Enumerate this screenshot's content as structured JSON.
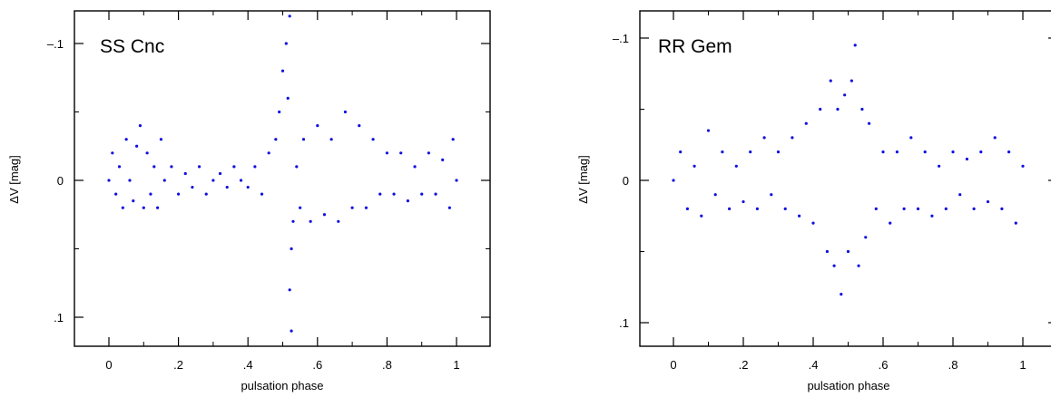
{
  "chart_data": [
    {
      "type": "scatter",
      "title": "SS Cnc",
      "xlabel": "pulsation phase",
      "ylabel": "ΔV [mag]",
      "xlim": [
        -0.1,
        1.1
      ],
      "ylim": [
        0.125,
        -0.125
      ],
      "y_inverted": true,
      "x_ticks": [
        "0",
        ".2",
        ".4",
        ".6",
        ".8",
        "1"
      ],
      "x_tick_values": [
        0,
        0.2,
        0.4,
        0.6,
        0.8,
        1.0
      ],
      "y_ticks": [
        "–.1",
        "0",
        ".1"
      ],
      "y_tick_values": [
        -0.1,
        0,
        0.1
      ],
      "marker_color": "#1010e0",
      "grid": false,
      "series": [
        {
          "values": [
            {
              "x": 0.0,
              "y": 0.0
            },
            {
              "x": 0.01,
              "y": -0.02
            },
            {
              "x": 0.02,
              "y": 0.01
            },
            {
              "x": 0.03,
              "y": -0.01
            },
            {
              "x": 0.04,
              "y": 0.02
            },
            {
              "x": 0.05,
              "y": -0.03
            },
            {
              "x": 0.06,
              "y": 0.0
            },
            {
              "x": 0.07,
              "y": 0.015
            },
            {
              "x": 0.08,
              "y": -0.025
            },
            {
              "x": 0.09,
              "y": -0.04
            },
            {
              "x": 0.1,
              "y": 0.02
            },
            {
              "x": 0.11,
              "y": -0.02
            },
            {
              "x": 0.12,
              "y": 0.01
            },
            {
              "x": 0.13,
              "y": -0.01
            },
            {
              "x": 0.14,
              "y": 0.02
            },
            {
              "x": 0.15,
              "y": -0.03
            },
            {
              "x": 0.16,
              "y": 0.0
            },
            {
              "x": 0.18,
              "y": -0.01
            },
            {
              "x": 0.2,
              "y": 0.01
            },
            {
              "x": 0.22,
              "y": -0.005
            },
            {
              "x": 0.24,
              "y": 0.005
            },
            {
              "x": 0.26,
              "y": -0.01
            },
            {
              "x": 0.28,
              "y": 0.01
            },
            {
              "x": 0.3,
              "y": 0.0
            },
            {
              "x": 0.32,
              "y": -0.005
            },
            {
              "x": 0.34,
              "y": 0.005
            },
            {
              "x": 0.36,
              "y": -0.01
            },
            {
              "x": 0.38,
              "y": 0.0
            },
            {
              "x": 0.4,
              "y": 0.005
            },
            {
              "x": 0.42,
              "y": -0.01
            },
            {
              "x": 0.44,
              "y": 0.01
            },
            {
              "x": 0.46,
              "y": -0.02
            },
            {
              "x": 0.48,
              "y": -0.03
            },
            {
              "x": 0.49,
              "y": -0.05
            },
            {
              "x": 0.5,
              "y": -0.08
            },
            {
              "x": 0.51,
              "y": -0.1
            },
            {
              "x": 0.515,
              "y": -0.06
            },
            {
              "x": 0.52,
              "y": -0.12
            },
            {
              "x": 0.525,
              "y": 0.05
            },
            {
              "x": 0.52,
              "y": 0.08
            },
            {
              "x": 0.525,
              "y": 0.11
            },
            {
              "x": 0.53,
              "y": 0.03
            },
            {
              "x": 0.54,
              "y": -0.01
            },
            {
              "x": 0.55,
              "y": 0.02
            },
            {
              "x": 0.56,
              "y": -0.03
            },
            {
              "x": 0.58,
              "y": 0.03
            },
            {
              "x": 0.6,
              "y": -0.04
            },
            {
              "x": 0.62,
              "y": 0.025
            },
            {
              "x": 0.64,
              "y": -0.03
            },
            {
              "x": 0.66,
              "y": 0.03
            },
            {
              "x": 0.68,
              "y": -0.05
            },
            {
              "x": 0.7,
              "y": 0.02
            },
            {
              "x": 0.72,
              "y": -0.04
            },
            {
              "x": 0.74,
              "y": 0.02
            },
            {
              "x": 0.76,
              "y": -0.03
            },
            {
              "x": 0.78,
              "y": 0.01
            },
            {
              "x": 0.8,
              "y": -0.02
            },
            {
              "x": 0.82,
              "y": 0.01
            },
            {
              "x": 0.84,
              "y": -0.02
            },
            {
              "x": 0.86,
              "y": 0.015
            },
            {
              "x": 0.88,
              "y": -0.01
            },
            {
              "x": 0.9,
              "y": 0.01
            },
            {
              "x": 0.92,
              "y": -0.02
            },
            {
              "x": 0.94,
              "y": 0.01
            },
            {
              "x": 0.96,
              "y": -0.015
            },
            {
              "x": 0.98,
              "y": 0.02
            },
            {
              "x": 0.99,
              "y": -0.03
            },
            {
              "x": 1.0,
              "y": 0.0
            }
          ]
        }
      ]
    },
    {
      "type": "scatter",
      "title": "RR Gem",
      "xlabel": "pulsation phase",
      "ylabel": "ΔV [mag]",
      "xlim": [
        -0.1,
        1.1
      ],
      "ylim": [
        0.125,
        -0.125
      ],
      "y_inverted": true,
      "x_ticks": [
        "0",
        ".2",
        ".4",
        ".6",
        ".8",
        "1"
      ],
      "x_tick_values": [
        0,
        0.2,
        0.4,
        0.6,
        0.8,
        1.0
      ],
      "y_ticks": [
        "–.1",
        "0",
        ".1"
      ],
      "y_tick_values": [
        -0.1,
        0,
        0.1
      ],
      "marker_color": "#1010e0",
      "grid": false,
      "series": [
        {
          "values": [
            {
              "x": 0.0,
              "y": 0.0
            },
            {
              "x": 0.02,
              "y": -0.02
            },
            {
              "x": 0.04,
              "y": 0.02
            },
            {
              "x": 0.06,
              "y": -0.01
            },
            {
              "x": 0.08,
              "y": 0.025
            },
            {
              "x": 0.1,
              "y": -0.035
            },
            {
              "x": 0.12,
              "y": 0.01
            },
            {
              "x": 0.14,
              "y": -0.02
            },
            {
              "x": 0.16,
              "y": 0.02
            },
            {
              "x": 0.18,
              "y": -0.01
            },
            {
              "x": 0.2,
              "y": 0.015
            },
            {
              "x": 0.22,
              "y": -0.02
            },
            {
              "x": 0.24,
              "y": 0.02
            },
            {
              "x": 0.26,
              "y": -0.03
            },
            {
              "x": 0.28,
              "y": 0.01
            },
            {
              "x": 0.3,
              "y": -0.02
            },
            {
              "x": 0.32,
              "y": 0.02
            },
            {
              "x": 0.34,
              "y": -0.03
            },
            {
              "x": 0.36,
              "y": 0.025
            },
            {
              "x": 0.38,
              "y": -0.04
            },
            {
              "x": 0.4,
              "y": 0.03
            },
            {
              "x": 0.42,
              "y": -0.05
            },
            {
              "x": 0.44,
              "y": 0.05
            },
            {
              "x": 0.45,
              "y": -0.07
            },
            {
              "x": 0.46,
              "y": 0.06
            },
            {
              "x": 0.47,
              "y": -0.05
            },
            {
              "x": 0.48,
              "y": 0.08
            },
            {
              "x": 0.49,
              "y": -0.06
            },
            {
              "x": 0.5,
              "y": 0.05
            },
            {
              "x": 0.51,
              "y": -0.07
            },
            {
              "x": 0.52,
              "y": -0.095
            },
            {
              "x": 0.53,
              "y": 0.06
            },
            {
              "x": 0.54,
              "y": -0.05
            },
            {
              "x": 0.55,
              "y": 0.04
            },
            {
              "x": 0.56,
              "y": -0.04
            },
            {
              "x": 0.58,
              "y": 0.02
            },
            {
              "x": 0.6,
              "y": -0.02
            },
            {
              "x": 0.62,
              "y": 0.03
            },
            {
              "x": 0.64,
              "y": -0.02
            },
            {
              "x": 0.66,
              "y": 0.02
            },
            {
              "x": 0.68,
              "y": -0.03
            },
            {
              "x": 0.7,
              "y": 0.02
            },
            {
              "x": 0.72,
              "y": -0.02
            },
            {
              "x": 0.74,
              "y": 0.025
            },
            {
              "x": 0.76,
              "y": -0.01
            },
            {
              "x": 0.78,
              "y": 0.02
            },
            {
              "x": 0.8,
              "y": -0.02
            },
            {
              "x": 0.82,
              "y": 0.01
            },
            {
              "x": 0.84,
              "y": -0.015
            },
            {
              "x": 0.86,
              "y": 0.02
            },
            {
              "x": 0.88,
              "y": -0.02
            },
            {
              "x": 0.9,
              "y": 0.015
            },
            {
              "x": 0.92,
              "y": -0.03
            },
            {
              "x": 0.94,
              "y": 0.02
            },
            {
              "x": 0.96,
              "y": -0.02
            },
            {
              "x": 0.98,
              "y": 0.03
            },
            {
              "x": 1.0,
              "y": -0.01
            }
          ]
        }
      ]
    }
  ]
}
